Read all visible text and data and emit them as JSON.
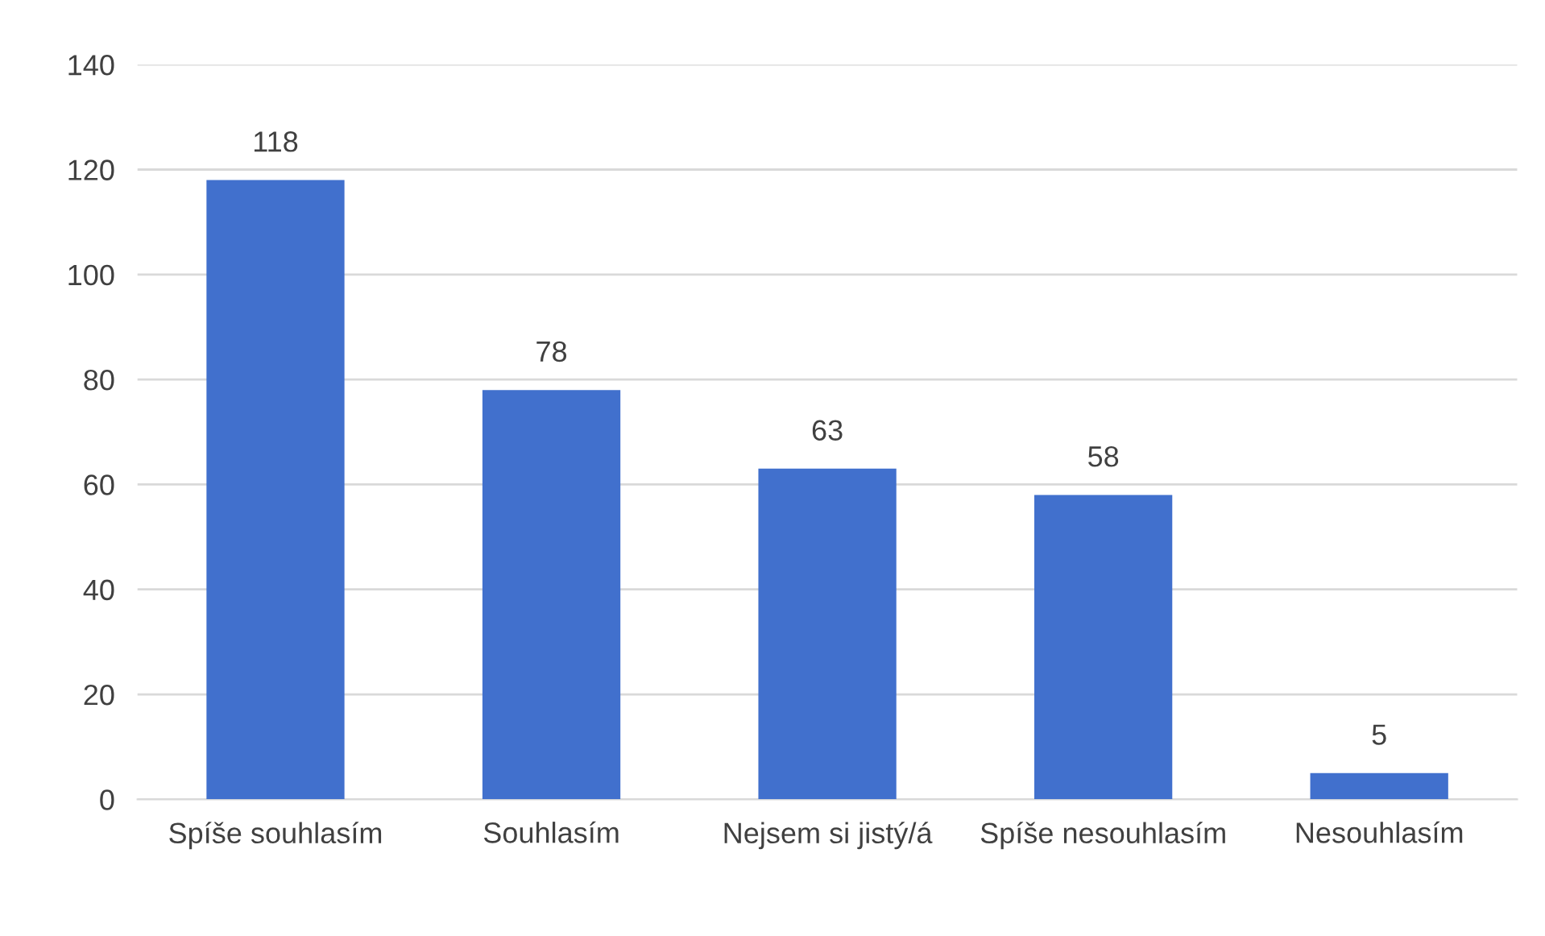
{
  "chart_data": {
    "type": "bar",
    "categories": [
      "Spíše souhlasím",
      "Souhlasím",
      "Nejsem si jistý/á",
      "Spíše nesouhlasím",
      "Nesouhlasím"
    ],
    "values": [
      118,
      78,
      63,
      58,
      5
    ],
    "color": "#4170cd",
    "ylim": [
      0,
      140
    ],
    "yticks": [
      0,
      20,
      40,
      60,
      80,
      100,
      120,
      140
    ],
    "grid": "y",
    "data_labels": true
  }
}
